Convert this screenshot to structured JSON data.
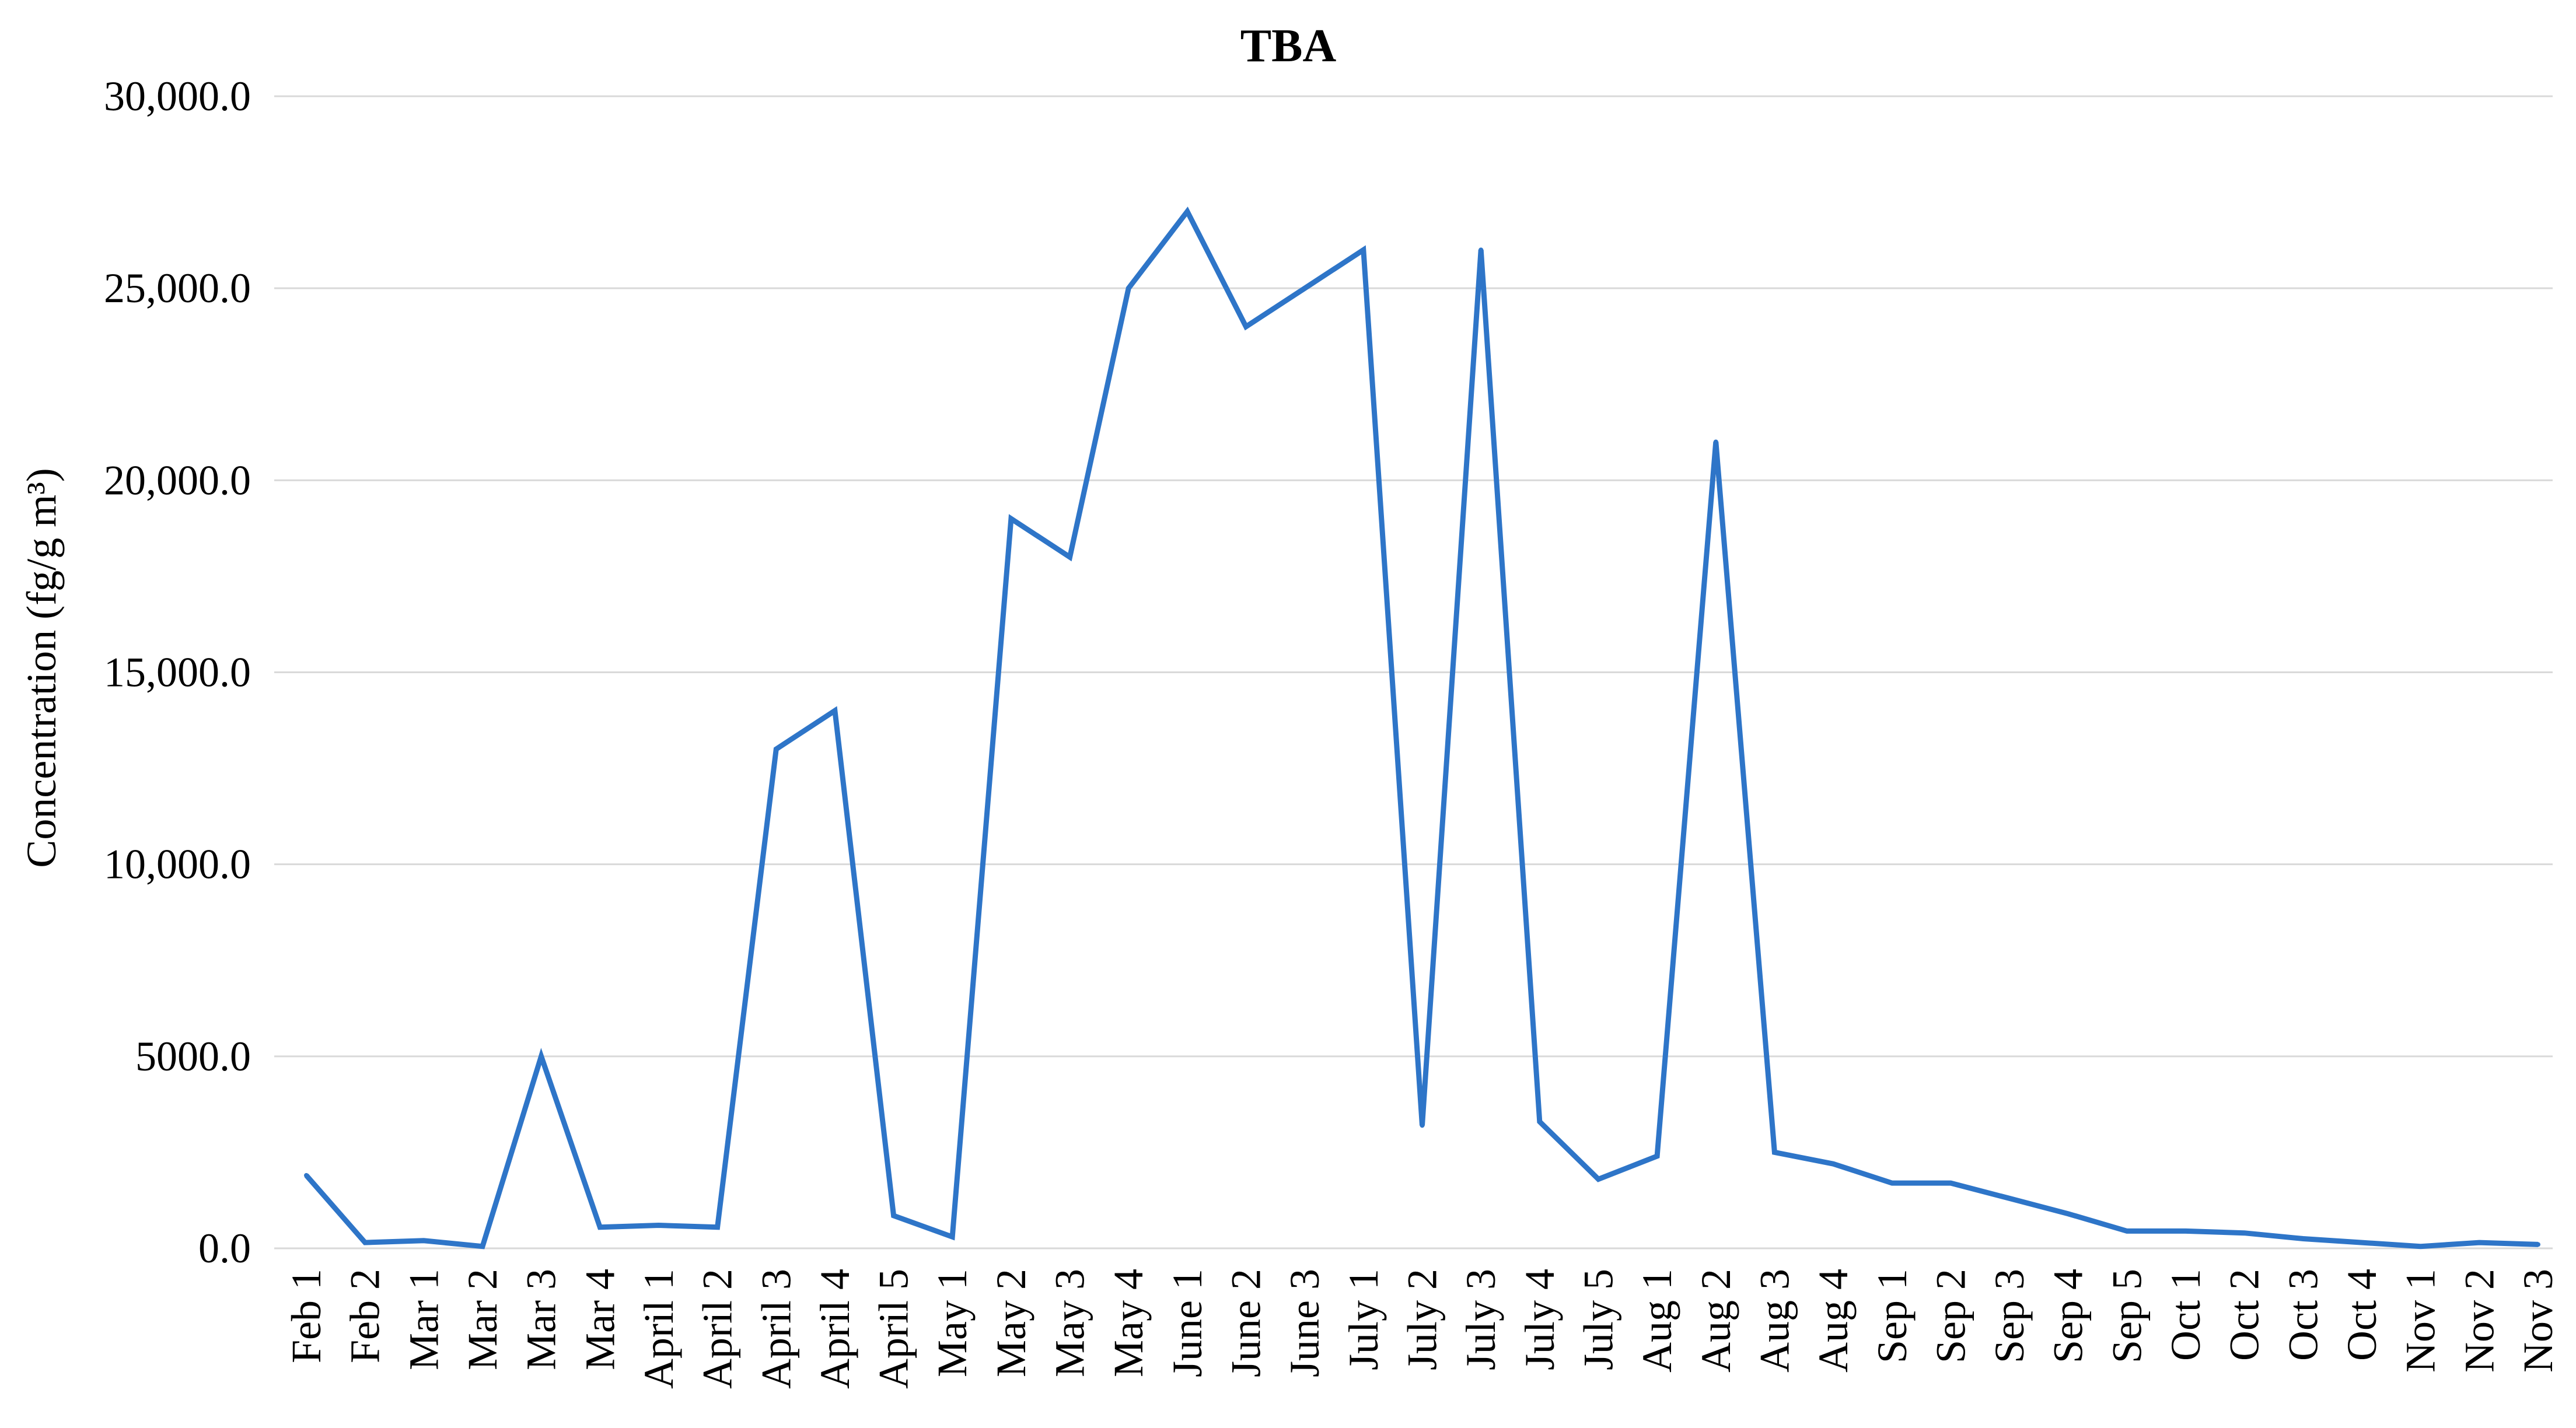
{
  "chart_data": {
    "type": "line",
    "title": "TBA",
    "xlabel": "",
    "ylabel": "Concentration (fg/g m³)",
    "ylim": [
      0,
      30000
    ],
    "yticks": [
      0,
      5000,
      10000,
      15000,
      20000,
      25000,
      30000
    ],
    "ytick_labels": [
      "0.0",
      "5000.0",
      "10,000.0",
      "15,000.0",
      "20,000.0",
      "25,000.0",
      "30,000.0"
    ],
    "grid": true,
    "legend": "none",
    "categories": [
      "Feb 1",
      "Feb 2",
      "Mar 1",
      "Mar 2",
      "Mar 3",
      "Mar 4",
      "April 1",
      "April 2",
      "April 3",
      "April 4",
      "April 5",
      "May 1",
      "May 2",
      "May 3",
      "May 4",
      "June 1",
      "June 2",
      "June 3",
      "July 1",
      "July 2",
      "July 3",
      "July 4",
      "July 5",
      "Aug 1",
      "Aug 2",
      "Aug 3",
      "Aug 4",
      "Sep 1",
      "Sep 2",
      "Sep 3",
      "Sep 4",
      "Sep 5",
      "Oct 1",
      "Oct 2",
      "Oct 3",
      "Oct 4",
      "Nov 1",
      "Nov 2",
      "Nov 3"
    ],
    "series": [
      {
        "values": [
          1900,
          150,
          200,
          50,
          5000,
          550,
          600,
          550,
          13000,
          14000,
          850,
          300,
          19000,
          18000,
          25000,
          27000,
          24000,
          25000,
          26000,
          3200,
          26000,
          3300,
          1800,
          2400,
          21000,
          2500,
          2200,
          1700,
          1700,
          1300,
          900,
          450,
          450,
          400,
          250,
          150,
          50,
          150,
          100
        ],
        "color": "#2e75c8"
      }
    ],
    "colors": {
      "line": "#2e75c8",
      "grid": "#d9d9d9",
      "text": "#000000"
    }
  }
}
